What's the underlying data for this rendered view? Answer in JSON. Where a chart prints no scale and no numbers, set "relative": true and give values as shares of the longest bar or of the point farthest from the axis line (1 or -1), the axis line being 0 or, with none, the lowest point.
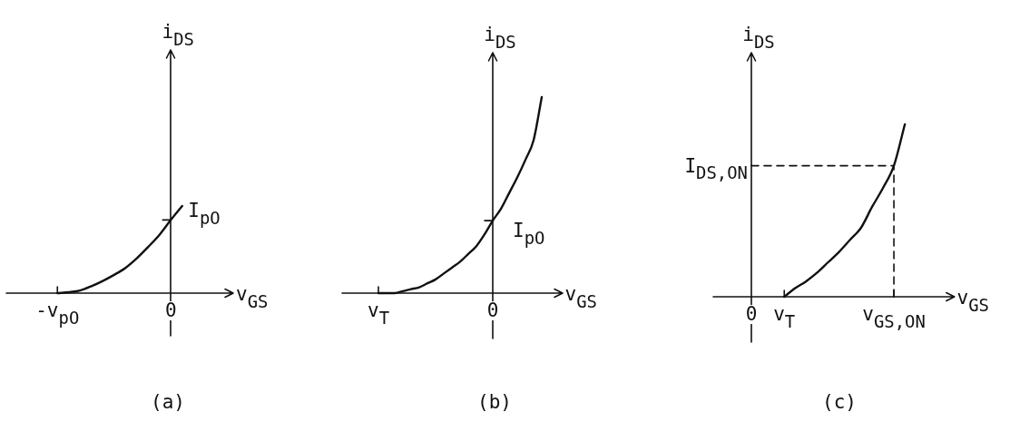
{
  "chart_data": [
    {
      "type": "line",
      "title": "(a)",
      "xlabel": "v$_{GS}$",
      "ylabel": "i$_{DS}$",
      "relative": true,
      "color": "#111111",
      "categories": [
        null,
        null,
        null,
        null,
        "-v$_{pO}$",
        null,
        null,
        null,
        null,
        null,
        null,
        null,
        null,
        null,
        "0",
        null,
        null,
        null,
        null,
        null
      ],
      "values": [
        null,
        null,
        null,
        null,
        0,
        0.01,
        0.03,
        0.08,
        0.14,
        0.21,
        0.29,
        0.4,
        0.53,
        0.67,
        0.84,
        1,
        null,
        null,
        null,
        null
      ],
      "annotations": [
        {
          "text": "I$_{pO}$",
          "x": "0",
          "y": 0.84
        }
      ]
    },
    {
      "type": "line",
      "title": "(b)",
      "xlabel": "v$_{GS}$",
      "ylabel": "i$_{DS}$",
      "relative": true,
      "color": "#111111",
      "categories": [
        null,
        null,
        null,
        null,
        "v$_{T}$",
        null,
        null,
        null,
        null,
        null,
        null,
        null,
        null,
        null,
        null,
        null,
        null,
        null,
        "0",
        null,
        null,
        null,
        null,
        null,
        null,
        null,
        null
      ],
      "values": [
        null,
        null,
        null,
        null,
        0,
        0,
        0,
        0.01,
        0.02,
        0.03,
        0.05,
        0.07,
        0.1,
        0.13,
        0.16,
        0.2,
        0.24,
        0.3,
        0.37,
        0.43,
        0.51,
        0.59,
        0.68,
        0.78,
        1,
        null,
        null
      ],
      "annotations": [
        {
          "text": "I$_{pO}$",
          "x": "0",
          "y": 0.37
        }
      ]
    },
    {
      "type": "line",
      "title": "(c)",
      "xlabel": "v$_{GS}$",
      "ylabel": "i$_{DS}$",
      "relative": true,
      "color": "#111111",
      "categories": [
        null,
        null,
        null,
        "0",
        null,
        null,
        "v$_{T}$",
        null,
        null,
        null,
        null,
        null,
        null,
        null,
        null,
        null,
        "v$_{GS,ON}$",
        null,
        null,
        null,
        null,
        null
      ],
      "values": [
        null,
        null,
        null,
        null,
        null,
        null,
        0,
        0.05,
        0.09,
        0.14,
        0.2,
        0.26,
        0.33,
        0.4,
        0.52,
        0.63,
        0.76,
        1,
        null,
        null,
        null,
        null
      ],
      "ref_lines": [
        {
          "axis": "y",
          "value": 0.76,
          "label": "I$_{DS,ON}$",
          "line_style": "dashed"
        },
        {
          "axis": "x",
          "value": "v$_{GS,ON}$",
          "line_style": "dashed"
        }
      ]
    }
  ]
}
